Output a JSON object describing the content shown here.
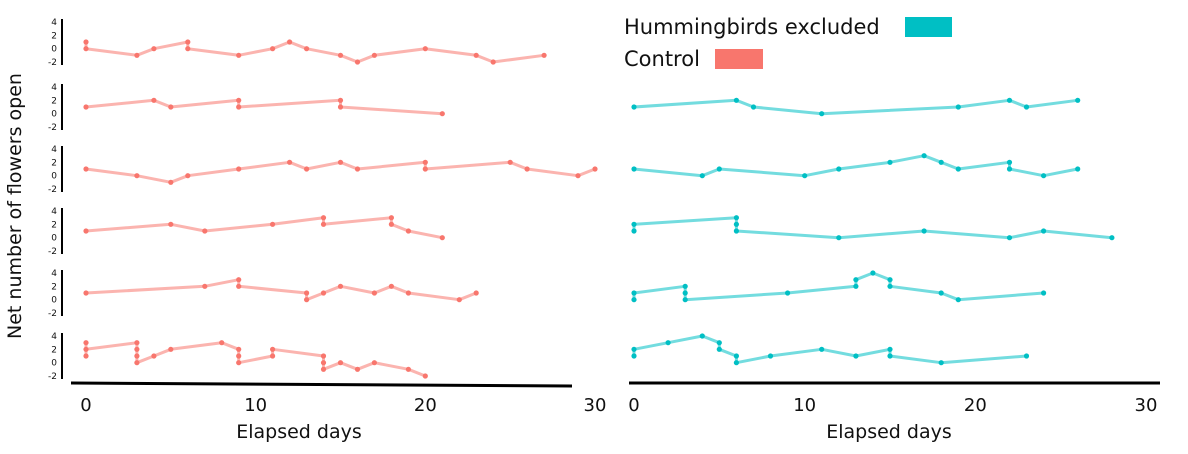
{
  "chart_data": {
    "type": "line",
    "ylabel": "Net number of flowers open",
    "xlabel": "Elapsed days",
    "xlim": [
      0,
      30
    ],
    "x_ticks": [
      "0",
      "10",
      "20",
      "30"
    ],
    "ylim": [
      -2,
      4
    ],
    "y_ticks": [
      "4",
      "2",
      "0",
      "-2"
    ],
    "grid": false,
    "legend": {
      "position": "top-right",
      "entries": [
        {
          "label": "Hummingbirds excluded",
          "color": "#00bfc4"
        },
        {
          "label": "Control",
          "color": "#f8766d"
        }
      ]
    },
    "colors": {
      "control": "#f8766d",
      "excluded": "#00bfc4"
    },
    "panels": [
      {
        "group": "control",
        "series": [
          {
            "x": [
              0,
              0,
              3,
              4,
              6,
              6,
              9,
              11,
              12,
              13,
              15,
              16,
              17,
              20,
              23,
              24,
              27
            ],
            "y": [
              1,
              0,
              -1,
              0,
              1,
              0,
              -1,
              0,
              1,
              0,
              -1,
              -2,
              -1,
              0,
              -1,
              -2,
              -1
            ]
          },
          {
            "x": [
              0,
              4,
              5,
              9,
              9,
              15,
              15,
              21
            ],
            "y": [
              1,
              2,
              1,
              2,
              1,
              2,
              1,
              0
            ]
          },
          {
            "x": [
              0,
              3,
              5,
              6,
              9,
              12,
              13,
              15,
              16,
              20,
              20,
              25,
              26,
              29,
              30
            ],
            "y": [
              1,
              0,
              -1,
              0,
              1,
              2,
              1,
              2,
              1,
              2,
              1,
              2,
              1,
              0,
              1
            ]
          },
          {
            "x": [
              0,
              5,
              7,
              11,
              14,
              14,
              18,
              18,
              19,
              21
            ],
            "y": [
              1,
              2,
              1,
              2,
              3,
              2,
              3,
              2,
              1,
              0
            ]
          },
          {
            "x": [
              0,
              7,
              9,
              9,
              13,
              13,
              14,
              15,
              17,
              18,
              19,
              22,
              23
            ],
            "y": [
              1,
              2,
              3,
              2,
              1,
              0,
              1,
              2,
              1,
              2,
              1,
              0,
              1
            ]
          },
          {
            "x": [
              0,
              0,
              0,
              3,
              3,
              3,
              3,
              4,
              5,
              8,
              9,
              9,
              9,
              11,
              11,
              14,
              14,
              14,
              15,
              16,
              17,
              19,
              20
            ],
            "y": [
              1,
              3,
              2,
              3,
              2,
              1,
              0,
              1,
              2,
              3,
              2,
              1,
              0,
              1,
              2,
              1,
              0,
              -1,
              0,
              -1,
              0,
              -1,
              -2
            ]
          }
        ]
      },
      {
        "group": "hummingbirds_excluded",
        "series": [
          {
            "x": [
              0,
              6,
              7,
              11,
              19,
              22,
              23,
              26
            ],
            "y": [
              1,
              2,
              1,
              0,
              1,
              2,
              1,
              2
            ]
          },
          {
            "x": [
              0,
              4,
              5,
              10,
              12,
              15,
              17,
              18,
              19,
              22,
              22,
              24,
              26
            ],
            "y": [
              1,
              0,
              1,
              0,
              1,
              2,
              3,
              2,
              1,
              2,
              1,
              0,
              1
            ]
          },
          {
            "x": [
              0,
              0,
              6,
              6,
              6,
              12,
              17,
              22,
              24,
              28
            ],
            "y": [
              1,
              2,
              3,
              2,
              1,
              0,
              1,
              0,
              1,
              0
            ]
          },
          {
            "x": [
              0,
              0,
              3,
              3,
              3,
              9,
              13,
              13,
              14,
              15,
              15,
              18,
              19,
              24
            ],
            "y": [
              0,
              1,
              2,
              1,
              0,
              1,
              2,
              3,
              4,
              3,
              2,
              1,
              0,
              1
            ]
          },
          {
            "x": [
              0,
              0,
              2,
              4,
              5,
              5,
              6,
              6,
              8,
              11,
              13,
              15,
              15,
              18,
              23
            ],
            "y": [
              1,
              2,
              3,
              4,
              3,
              2,
              1,
              0,
              1,
              2,
              1,
              2,
              1,
              0,
              1
            ]
          }
        ]
      }
    ]
  }
}
